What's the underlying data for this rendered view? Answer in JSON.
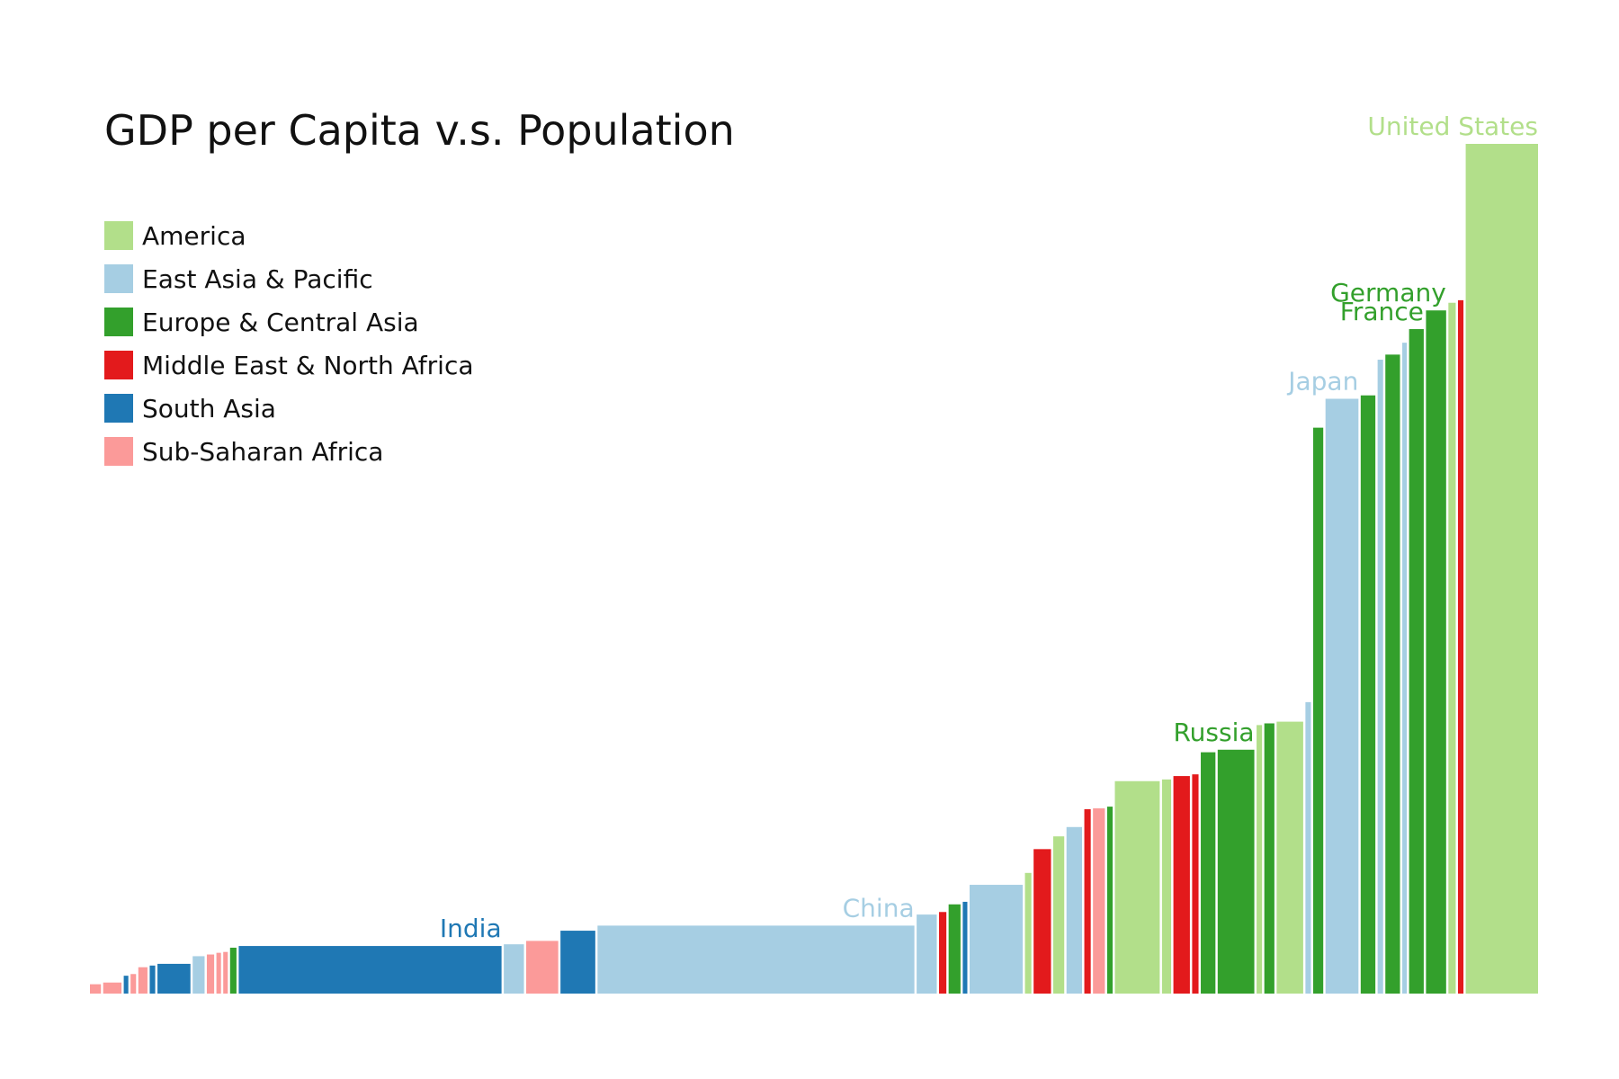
{
  "colors": {
    "America": "#b2df8a",
    "East Asia & Pacific": "#a6cee3",
    "Europe & Central Asia": "#33a02c",
    "Middle East & North Africa": "#e31a1c",
    "South Asia": "#1f78b4",
    "Sub-Saharan Africa": "#fb9a99"
  },
  "chart_data": {
    "type": "bar",
    "title": "GDP per Capita v.s. Population",
    "xlabel": "",
    "ylabel": "",
    "note": "Variable-width bars: bar width ∝ population, bar height ∝ GDP per capita; axes are unlabeled, so values are in relative units (United States = 100).",
    "ylim": [
      0,
      100
    ],
    "grid": false,
    "legend": {
      "position": "top-left",
      "entries": [
        "America",
        "East Asia & Pacific",
        "Europe & Central Asia",
        "Middle East & North Africa",
        "South Asia",
        "Sub-Saharan Africa"
      ]
    },
    "bars": [
      {
        "region": "Sub-Saharan Africa",
        "width": 1.2,
        "value": 1.1
      },
      {
        "region": "Sub-Saharan Africa",
        "width": 2.0,
        "value": 1.3
      },
      {
        "region": "South Asia",
        "width": 0.5,
        "value": 2.1
      },
      {
        "region": "Sub-Saharan Africa",
        "width": 0.6,
        "value": 2.3
      },
      {
        "region": "Sub-Saharan Africa",
        "width": 1.0,
        "value": 3.1
      },
      {
        "region": "South Asia",
        "width": 0.6,
        "value": 3.3
      },
      {
        "region": "South Asia",
        "width": 3.6,
        "value": 3.5
      },
      {
        "region": "East Asia & Pacific",
        "width": 1.3,
        "value": 4.4
      },
      {
        "region": "Sub-Saharan Africa",
        "width": 0.8,
        "value": 4.6
      },
      {
        "region": "Sub-Saharan Africa",
        "width": 0.5,
        "value": 4.8
      },
      {
        "region": "Sub-Saharan Africa",
        "width": 0.5,
        "value": 4.9
      },
      {
        "region": "Europe & Central Asia",
        "width": 0.7,
        "value": 5.4
      },
      {
        "region": "South Asia",
        "width": 28.7,
        "value": 5.6,
        "label": "India"
      },
      {
        "region": "East Asia & Pacific",
        "width": 2.2,
        "value": 5.8
      },
      {
        "region": "Sub-Saharan Africa",
        "width": 3.5,
        "value": 6.2
      },
      {
        "region": "South Asia",
        "width": 3.8,
        "value": 7.4
      },
      {
        "region": "East Asia & Pacific",
        "width": 34.6,
        "value": 8.0,
        "label": "China"
      },
      {
        "region": "East Asia & Pacific",
        "width": 2.2,
        "value": 9.3
      },
      {
        "region": "Middle East & North Africa",
        "width": 0.8,
        "value": 9.6
      },
      {
        "region": "Europe & Central Asia",
        "width": 1.3,
        "value": 10.5
      },
      {
        "region": "South Asia",
        "width": 0.5,
        "value": 10.8
      },
      {
        "region": "East Asia & Pacific",
        "width": 5.8,
        "value": 12.8
      },
      {
        "region": "America",
        "width": 0.7,
        "value": 14.2
      },
      {
        "region": "Middle East & North Africa",
        "width": 1.9,
        "value": 17.0
      },
      {
        "region": "America",
        "width": 1.2,
        "value": 18.5
      },
      {
        "region": "East Asia & Pacific",
        "width": 1.7,
        "value": 19.6
      },
      {
        "region": "Middle East & North Africa",
        "width": 0.7,
        "value": 21.7
      },
      {
        "region": "Sub-Saharan Africa",
        "width": 1.3,
        "value": 21.8
      },
      {
        "region": "Europe & Central Asia",
        "width": 0.6,
        "value": 22.0
      },
      {
        "region": "America",
        "width": 4.9,
        "value": 25.0
      },
      {
        "region": "America",
        "width": 1.0,
        "value": 25.2
      },
      {
        "region": "Middle East & North Africa",
        "width": 1.8,
        "value": 25.6
      },
      {
        "region": "Middle East & North Africa",
        "width": 0.7,
        "value": 25.8
      },
      {
        "region": "Europe & Central Asia",
        "width": 1.6,
        "value": 28.4
      },
      {
        "region": "Europe & Central Asia",
        "width": 4.0,
        "value": 28.7,
        "label": "Russia"
      },
      {
        "region": "America",
        "width": 0.6,
        "value": 31.6
      },
      {
        "region": "Europe & Central Asia",
        "width": 1.1,
        "value": 31.8
      },
      {
        "region": "America",
        "width": 2.9,
        "value": 32.0
      },
      {
        "region": "East Asia & Pacific",
        "width": 0.6,
        "value": 34.3
      },
      {
        "region": "Europe & Central Asia",
        "width": 1.1,
        "value": 66.6
      },
      {
        "region": "East Asia & Pacific",
        "width": 3.6,
        "value": 70.0,
        "label": "Japan"
      },
      {
        "region": "Europe & Central Asia",
        "width": 1.6,
        "value": 70.4
      },
      {
        "region": "East Asia & Pacific",
        "width": 0.6,
        "value": 74.6
      },
      {
        "region": "Europe & Central Asia",
        "width": 1.6,
        "value": 75.2
      },
      {
        "region": "East Asia & Pacific",
        "width": 0.5,
        "value": 76.6
      },
      {
        "region": "Europe & Central Asia",
        "width": 1.6,
        "value": 78.2,
        "label": "France"
      },
      {
        "region": "Europe & Central Asia",
        "width": 2.2,
        "value": 80.4,
        "label": "Germany"
      },
      {
        "region": "America",
        "width": 0.8,
        "value": 81.3
      },
      {
        "region": "Middle East & North Africa",
        "width": 0.6,
        "value": 81.6
      },
      {
        "region": "America",
        "width": 7.9,
        "value": 100.0,
        "label": "United States"
      }
    ]
  }
}
